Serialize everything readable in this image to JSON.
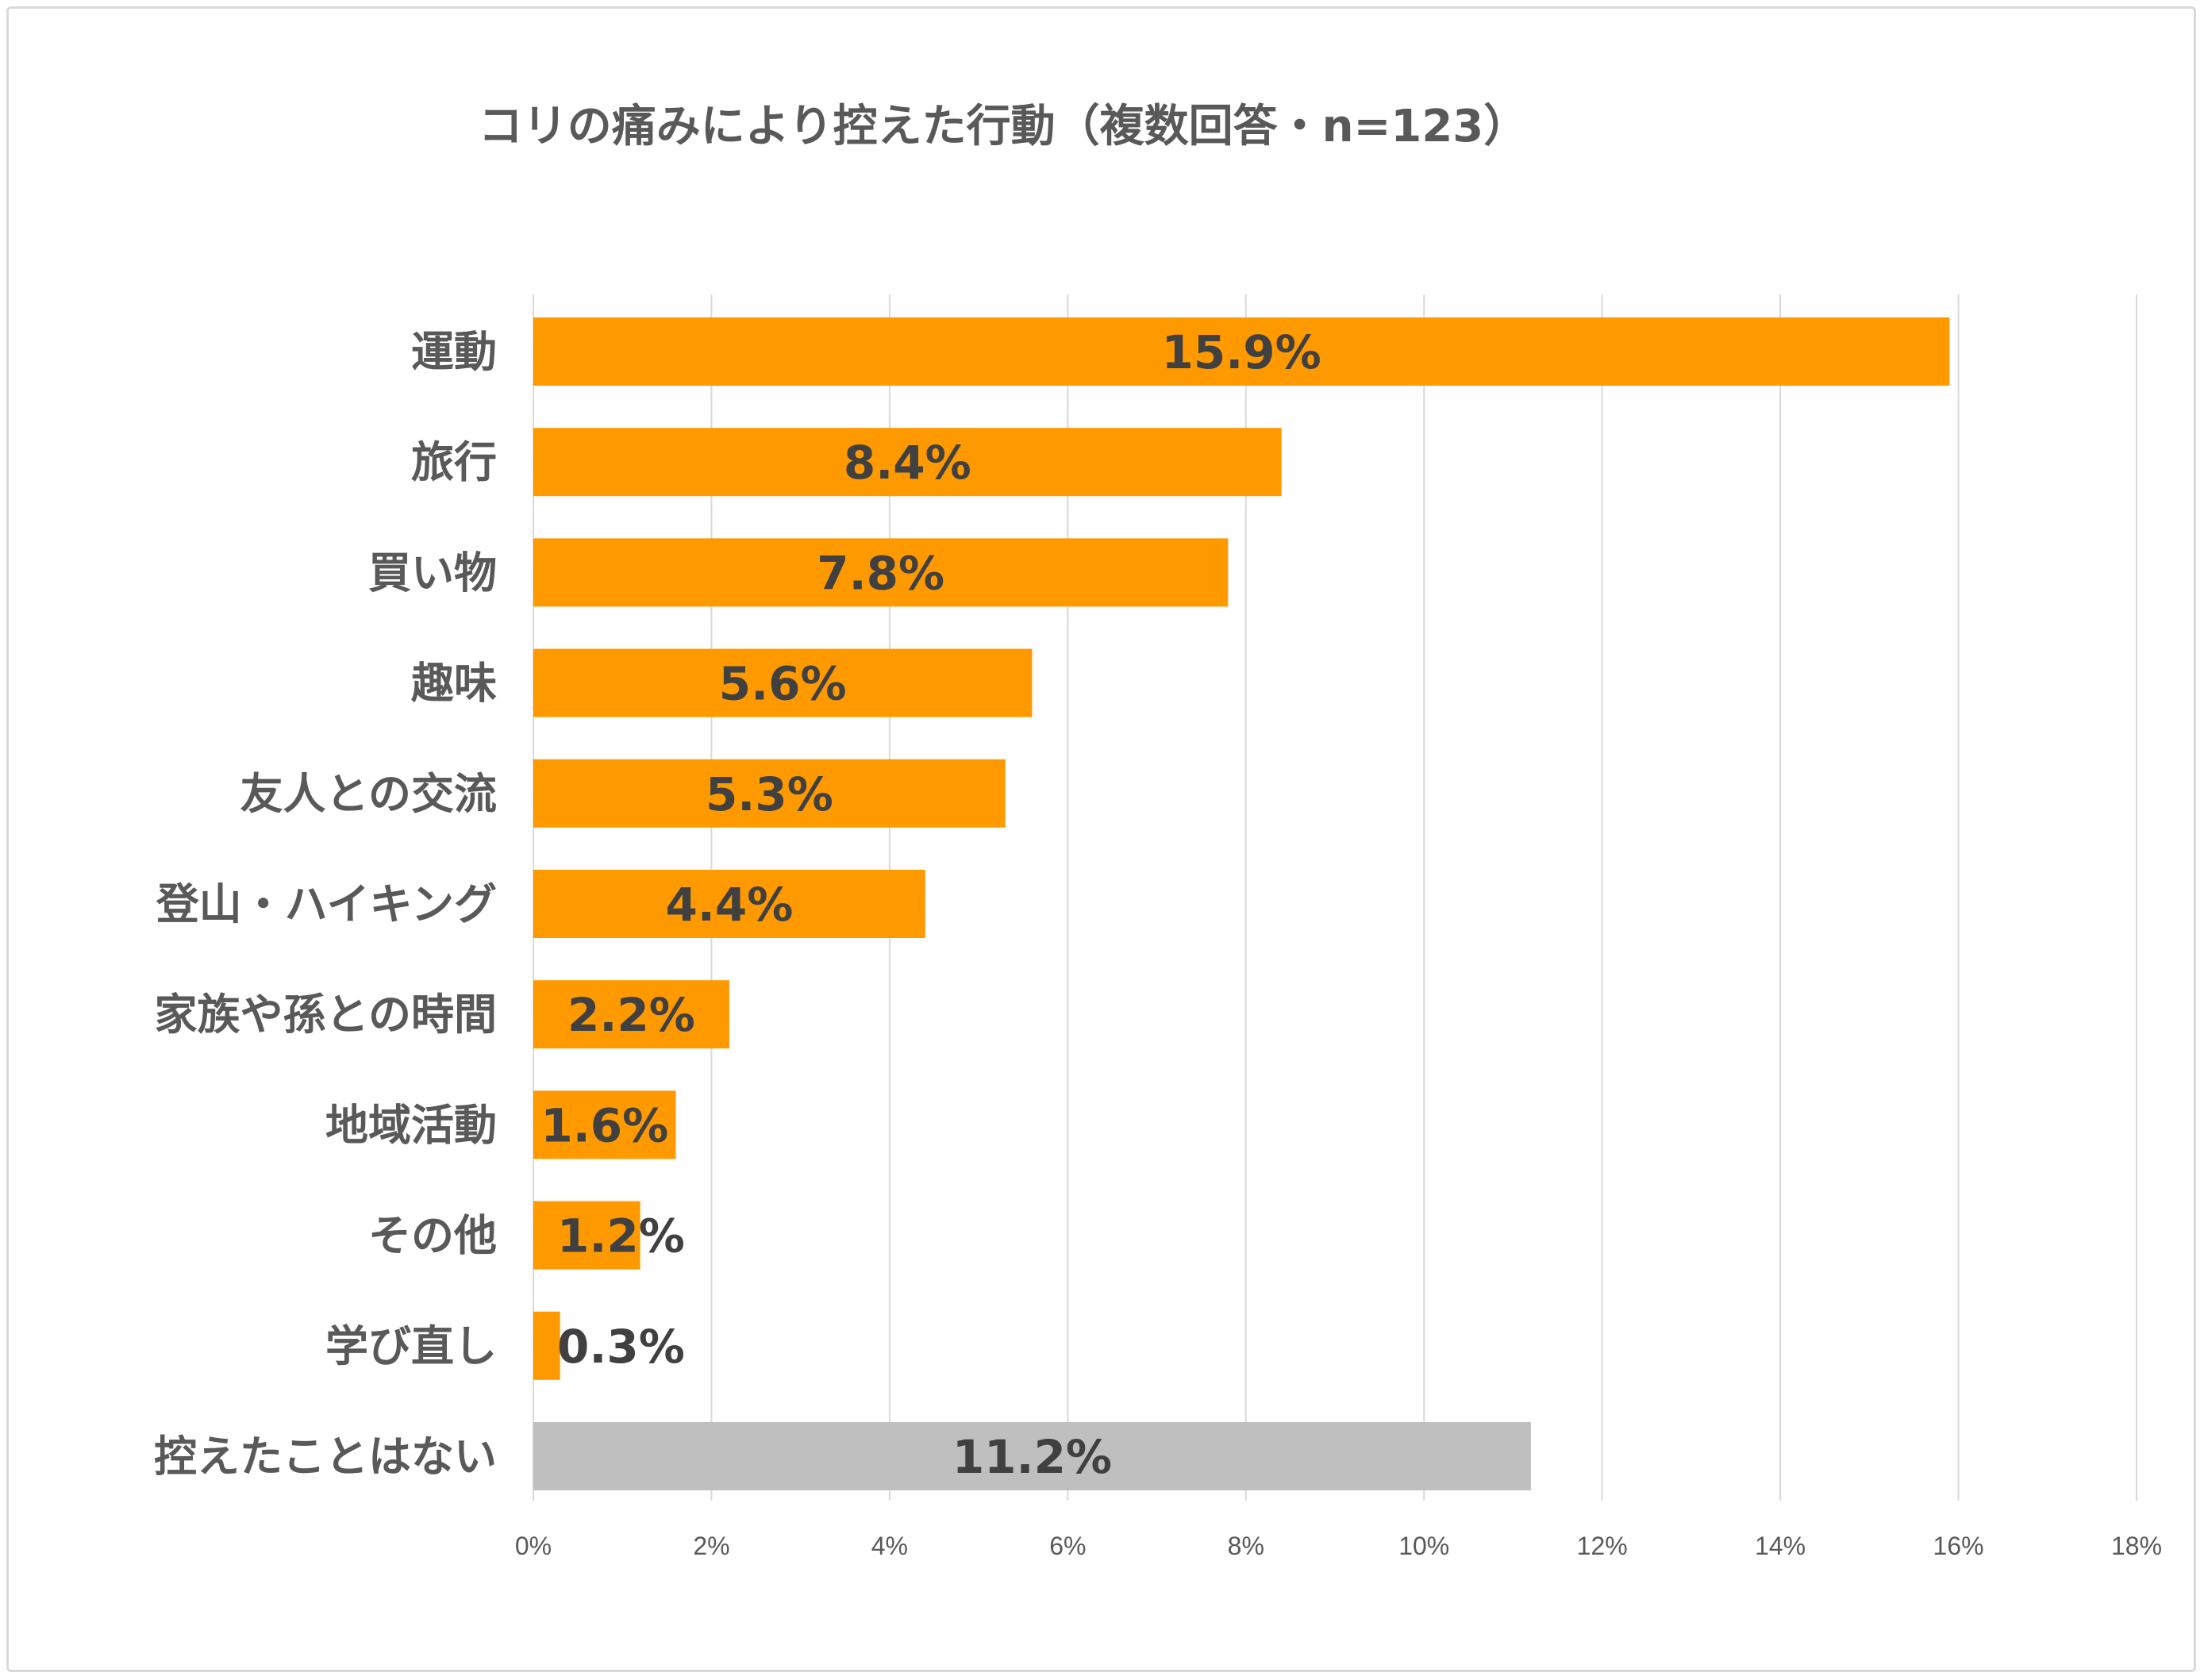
{
  "chart_data": {
    "type": "bar",
    "orientation": "horizontal",
    "title": "コリの痛みにより控えた行動（複数回答・n=123）",
    "categories": [
      "運動",
      "旅行",
      "買い物",
      "趣味",
      "友人との交流",
      "登山・ハイキング",
      "家族や孫との時間",
      "地域活動",
      "その他",
      "学び直し",
      "控えたことはない"
    ],
    "values": [
      15.9,
      8.4,
      7.8,
      5.6,
      5.3,
      4.4,
      2.2,
      1.6,
      1.2,
      0.3,
      11.2
    ],
    "value_labels": [
      "15.9%",
      "8.4%",
      "7.8%",
      "5.6%",
      "5.3%",
      "4.4%",
      "2.2%",
      "1.6%",
      "1.2%",
      "0.3%",
      "11.2%"
    ],
    "bar_colors": [
      "#ff9900",
      "#ff9900",
      "#ff9900",
      "#ff9900",
      "#ff9900",
      "#ff9900",
      "#ff9900",
      "#ff9900",
      "#ff9900",
      "#ff9900",
      "#bfbfbf"
    ],
    "x_ticks": [
      0,
      2,
      4,
      6,
      8,
      10,
      12,
      14,
      16,
      18
    ],
    "x_tick_labels": [
      "0%",
      "2%",
      "4%",
      "6%",
      "8%",
      "10%",
      "12%",
      "14%",
      "16%",
      "18%"
    ],
    "xlim": [
      0,
      18
    ],
    "grid": "vertical",
    "legend": "none",
    "gridline_color": "#d9d9d9"
  }
}
